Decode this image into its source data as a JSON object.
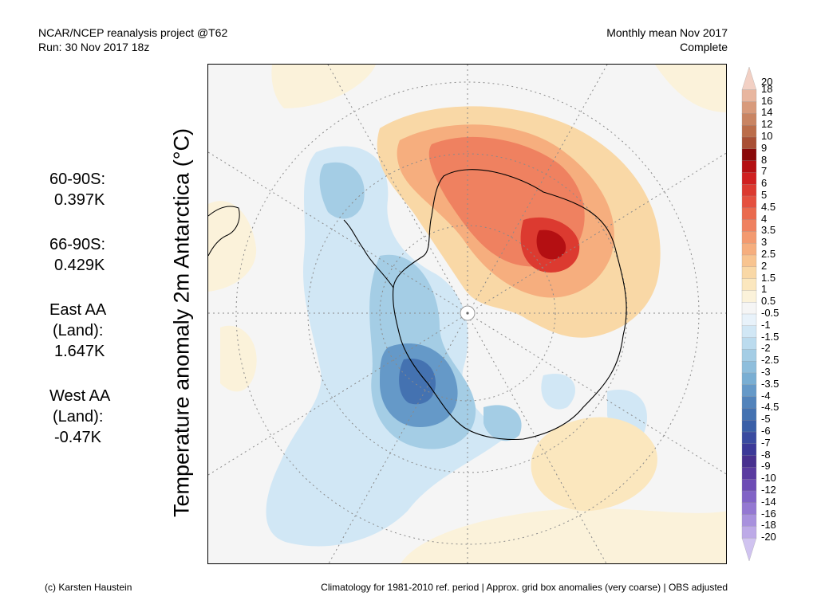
{
  "header": {
    "line1_left": "NCAR/NCEP reanalysis project @T62",
    "line2_left": "Run: 30 Nov 2017 18z",
    "line1_right": "Monthly mean Nov 2017",
    "line2_right": "Complete"
  },
  "side_stats": [
    {
      "label": "60-90S:",
      "value": "0.397K"
    },
    {
      "label": "66-90S:",
      "value": "0.429K"
    },
    {
      "label": "East AA",
      "sub": "(Land):",
      "value": "1.647K"
    },
    {
      "label": "West AA",
      "sub": "(Land):",
      "value": "-0.47K"
    }
  ],
  "y_axis_label": "Temperature anomaly 2m Antarctica (°C)",
  "colorbar": {
    "labels": [
      "20",
      "18",
      "16",
      "14",
      "12",
      "10",
      "9",
      "8",
      "7",
      "6",
      "5",
      "4.5",
      "4",
      "3.5",
      "3",
      "2.5",
      "2",
      "1.5",
      "1",
      "0.5",
      "-0.5",
      "-1",
      "-1.5",
      "-2",
      "-2.5",
      "-3",
      "-3.5",
      "-4",
      "-4.5",
      "-5",
      "-6",
      "-7",
      "-8",
      "-9",
      "-10",
      "-12",
      "-14",
      "-16",
      "-18",
      "-20"
    ],
    "colors": [
      "#f2d0c4",
      "#e8b69f",
      "#d89a7b",
      "#c98462",
      "#bb6d4a",
      "#a94f34",
      "#8a0a0a",
      "#b40f12",
      "#d02020",
      "#dc3a30",
      "#e5503f",
      "#ea6a4e",
      "#ef8160",
      "#f39a70",
      "#f6ae7e",
      "#f8c490",
      "#f9d8a6",
      "#fbe7be",
      "#fbf2da",
      "#f5f5f5",
      "#e8f2fa",
      "#d1e7f5",
      "#bbdbee",
      "#a4cde5",
      "#8ebedc",
      "#79aed3",
      "#6599c8",
      "#5283bb",
      "#4472b1",
      "#3a5fa7",
      "#3a4ba0",
      "#3c3998",
      "#48308f",
      "#5a3ba0",
      "#6d4cb5",
      "#8163c6",
      "#9478d2",
      "#a891dd",
      "#bdaae7",
      "#d0c3f0"
    ]
  },
  "map": {
    "anomaly_colors": {
      "warm_strong": "#d02020",
      "warm": "#ef8160",
      "warm_weak": "#f9d8a6",
      "neutral": "#f5f5f5",
      "cold_weak": "#d1e7f5",
      "cold": "#8ebedc",
      "cold_strong": "#4472b1"
    }
  },
  "footer": {
    "left": "(c) Karsten Haustein",
    "right": "Climatology for 1981-2010 ref. period | Approx. grid box anomalies (very coarse) | OBS adjusted"
  }
}
